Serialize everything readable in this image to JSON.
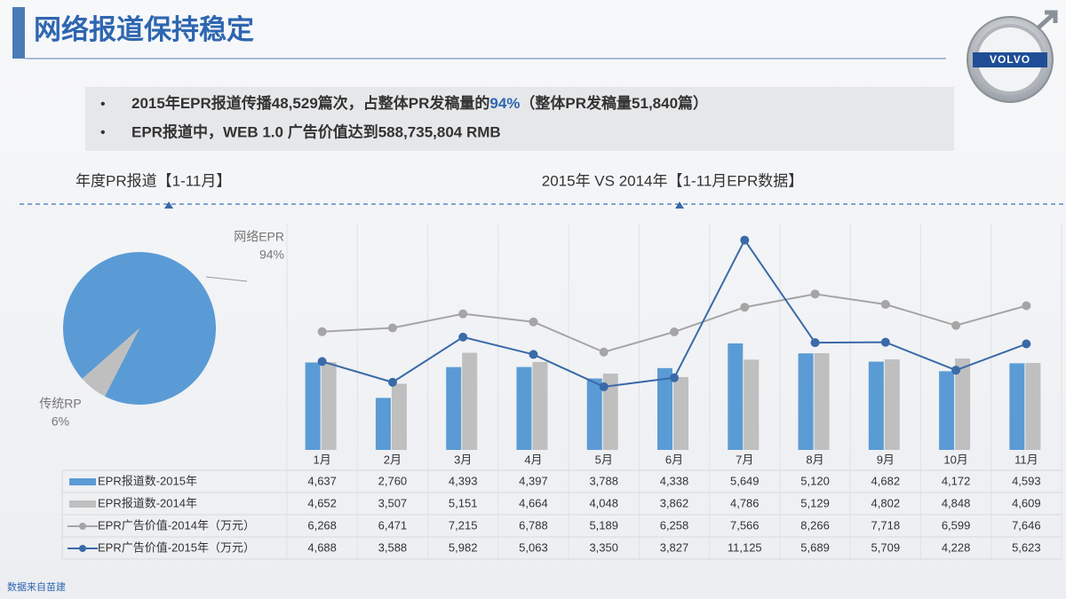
{
  "title": "网络报道保持稳定",
  "logo": "VOLVO",
  "bullets": [
    [
      "2015年EPR报道传播48,529篇次，占整体PR发稿量的",
      "94%",
      "（整体PR发稿量51,840篇）"
    ],
    [
      "EPR报道中，WEB 1.0 广告价值达到588,735,804 RMB"
    ]
  ],
  "source": "数据来自苗建",
  "chart_data": [
    {
      "type": "pie",
      "title": "年度PR报道【1-11月】",
      "categories": [
        "网络EPR",
        "传统RP"
      ],
      "values": [
        94,
        6
      ],
      "value_labels": [
        "94%",
        "6%"
      ],
      "colors": [
        "#5b9bd5",
        "#bfbfbf"
      ]
    },
    {
      "type": "combo",
      "title": "2015年 VS 2014年【1-11月EPR数据】",
      "categories": [
        "1月",
        "2月",
        "3月",
        "4月",
        "5月",
        "6月",
        "7月",
        "8月",
        "9月",
        "10月",
        "11月"
      ],
      "ylim": [
        0,
        12000
      ],
      "y2lim": [
        0,
        12000
      ],
      "grid": true,
      "series": [
        {
          "name": "EPR报道数-2015年",
          "type": "bar",
          "color": "#5b9bd5",
          "values": [
            4637,
            2760,
            4393,
            4397,
            3788,
            4338,
            5649,
            5120,
            4682,
            4172,
            4593
          ],
          "value_labels": [
            "4,637",
            "2,760",
            "4,393",
            "4,397",
            "3,788",
            "4,338",
            "5,649",
            "5,120",
            "4,682",
            "4,172",
            "4,593"
          ]
        },
        {
          "name": "EPR报道数-2014年",
          "type": "bar",
          "color": "#bfbfbf",
          "values": [
            4652,
            3507,
            5151,
            4664,
            4048,
            3862,
            4786,
            5129,
            4802,
            4848,
            4609
          ],
          "value_labels": [
            "4,652",
            "3,507",
            "5,151",
            "4,664",
            "4,048",
            "3,862",
            "4,786",
            "5,129",
            "4,802",
            "4,848",
            "4,609"
          ]
        },
        {
          "name": "EPR广告价值-2014年（万元）",
          "type": "line",
          "axis": "y2",
          "color": "#a5a5a5",
          "values": [
            6268,
            6471,
            7215,
            6788,
            5189,
            6258,
            7566,
            8266,
            7718,
            6599,
            7646
          ],
          "value_labels": [
            "6,268",
            "6,471",
            "7,215",
            "6,788",
            "5,189",
            "6,258",
            "7,566",
            "8,266",
            "7,718",
            "6,599",
            "7,646"
          ]
        },
        {
          "name": "EPR广告价值-2015年（万元）",
          "type": "line",
          "axis": "y2",
          "color": "#3a6aa8",
          "values": [
            4688,
            3588,
            5982,
            5063,
            3350,
            3827,
            11125,
            5689,
            5709,
            4228,
            5623
          ],
          "value_labels": [
            "4,688",
            "3,588",
            "5,982",
            "5,063",
            "3,350",
            "3,827",
            "11,125",
            "5,689",
            "5,709",
            "4,228",
            "5,623"
          ]
        }
      ]
    }
  ]
}
